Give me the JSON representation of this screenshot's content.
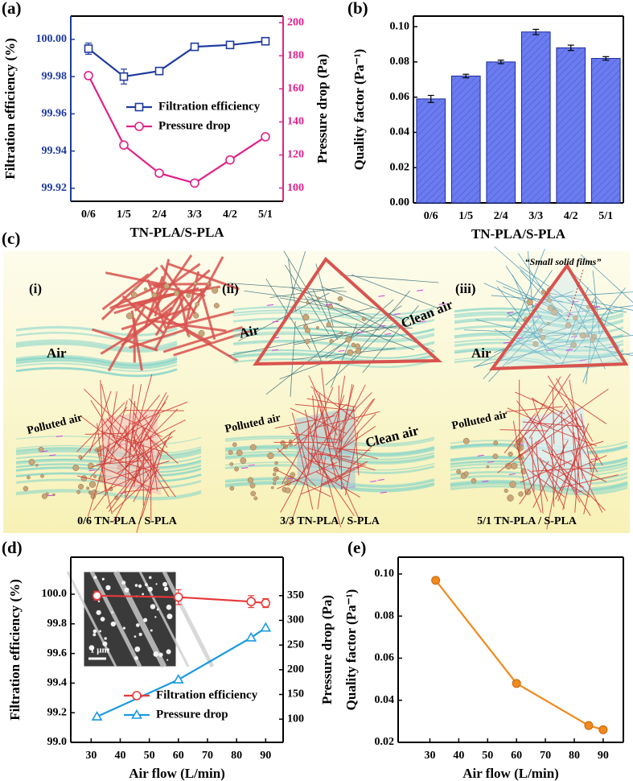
{
  "chart_data": [
    {
      "type": "line",
      "label": "(a)",
      "xlabel": "TN-PLA/S-PLA",
      "ylabel": "Filtration efficiency (%)",
      "y2label": "Pressure drop (Pa)",
      "categories": [
        "0/6",
        "1/5",
        "2/4",
        "3/3",
        "4/2",
        "5/1"
      ],
      "series": [
        {
          "name": "Filtration efficiency",
          "color": "#1f3a9e",
          "marker": "square",
          "values": [
            99.995,
            99.98,
            99.983,
            99.996,
            99.997,
            99.999
          ],
          "errors": [
            0.003,
            0.004,
            0.001,
            0.001,
            0.001,
            0.001
          ]
        },
        {
          "name": "Pressure drop",
          "color": "#e0218a",
          "marker": "circle",
          "axis": "y2",
          "values": [
            168,
            126,
            109,
            103,
            117,
            131
          ],
          "errors": [
            2,
            1,
            1,
            1,
            1,
            1
          ]
        }
      ],
      "ylim": [
        99.913,
        100.0125
      ],
      "yticks": [
        99.92,
        99.94,
        99.96,
        99.98,
        {
          "value": 100,
          "label": "100.00"
        }
      ],
      "y2lim": [
        92,
        204
      ],
      "y2ticks": [
        100,
        120,
        140,
        160,
        180,
        200
      ],
      "axis_colors": [
        "#1f3a9e",
        "#e0218a"
      ],
      "legend": "center right"
    },
    {
      "type": "bar",
      "label": "(b)",
      "xlabel": "TN-PLA/S-PLA",
      "ylabel": "Quality factor (Pa⁻¹)",
      "categories": [
        "0/6",
        "1/5",
        "2/4",
        "3/3",
        "4/2",
        "5/1"
      ],
      "values": [
        0.059,
        0.072,
        0.08,
        0.097,
        0.088,
        0.082
      ],
      "errors": [
        0.002,
        0.001,
        0.001,
        0.0015,
        0.0015,
        0.001
      ],
      "color": "#6a7cf0",
      "edge_color": "#1c2b9c",
      "ylim": [
        0,
        0.106
      ],
      "yticks": [
        {
          "value": 0,
          "label": "0.00"
        },
        0.02,
        0.04,
        0.06,
        0.08,
        {
          "value": 0.1,
          "label": "0.10"
        }
      ]
    },
    {
      "type": "line",
      "label": "(d)",
      "xlabel": "Air flow (L/min)",
      "ylabel": "Filtration efficiency (%)",
      "y2label": "Pressure drop (Pa)",
      "x": [
        32,
        60,
        85,
        90
      ],
      "series": [
        {
          "name": "Filtration efficiency",
          "color": "#e8393a",
          "marker": "circle",
          "values": [
            99.99,
            99.98,
            99.95,
            99.94
          ],
          "errors": [
            0.03,
            0.05,
            0.04,
            0.03
          ]
        },
        {
          "name": "Pressure drop",
          "color": "#1a9ae0",
          "marker": "triangle",
          "axis": "y2",
          "values": [
            105,
            180,
            265,
            285
          ]
        }
      ],
      "xlim": [
        23,
        96
      ],
      "xticks": [
        30,
        40,
        50,
        60,
        70,
        80,
        90
      ],
      "ylim": [
        99.0,
        100.25
      ],
      "yticks": [
        {
          "value": 99,
          "label": "99.0"
        },
        99.2,
        99.4,
        99.6,
        99.8,
        {
          "value": 100,
          "label": "100.0"
        }
      ],
      "y2lim": [
        53,
        428
      ],
      "y2ticks": [
        100,
        150,
        200,
        250,
        300,
        350
      ],
      "legend": "lower right",
      "inset_label": "1 μm"
    },
    {
      "type": "line",
      "label": "(e)",
      "xlabel": "Air flow (L/min)",
      "ylabel": "Quality factor (Pa⁻¹)",
      "x": [
        32,
        60,
        85,
        90
      ],
      "series": [
        {
          "color": "#f08a1c",
          "marker": "dot",
          "values": [
            0.097,
            0.048,
            0.028,
            0.026
          ]
        }
      ],
      "xlim": [
        19,
        97
      ],
      "xticks": [
        30,
        40,
        50,
        60,
        70,
        80,
        90
      ],
      "ylim": [
        0.02,
        0.108
      ],
      "yticks": [
        0.02,
        0.04,
        0.06,
        0.08,
        {
          "value": 0.1,
          "label": "0.10"
        }
      ]
    }
  ],
  "illustration": {
    "label": "(c)",
    "panels": [
      {
        "label": "(i)",
        "air": "Air",
        "polluted": "Polluted air",
        "caption": "0/6 TN-PLA / S-PLA"
      },
      {
        "label": "(ii)",
        "air": "Air",
        "clean": "Clean air",
        "polluted": "Polluted air",
        "clean_bottom": "Clean air",
        "caption": "3/3 TN-PLA / S-PLA"
      },
      {
        "label": "(iii)",
        "air": "Air",
        "note": "“Small solid films”",
        "polluted": "Polluted air",
        "caption": "5/1 TN-PLA / S-PLA"
      }
    ]
  }
}
